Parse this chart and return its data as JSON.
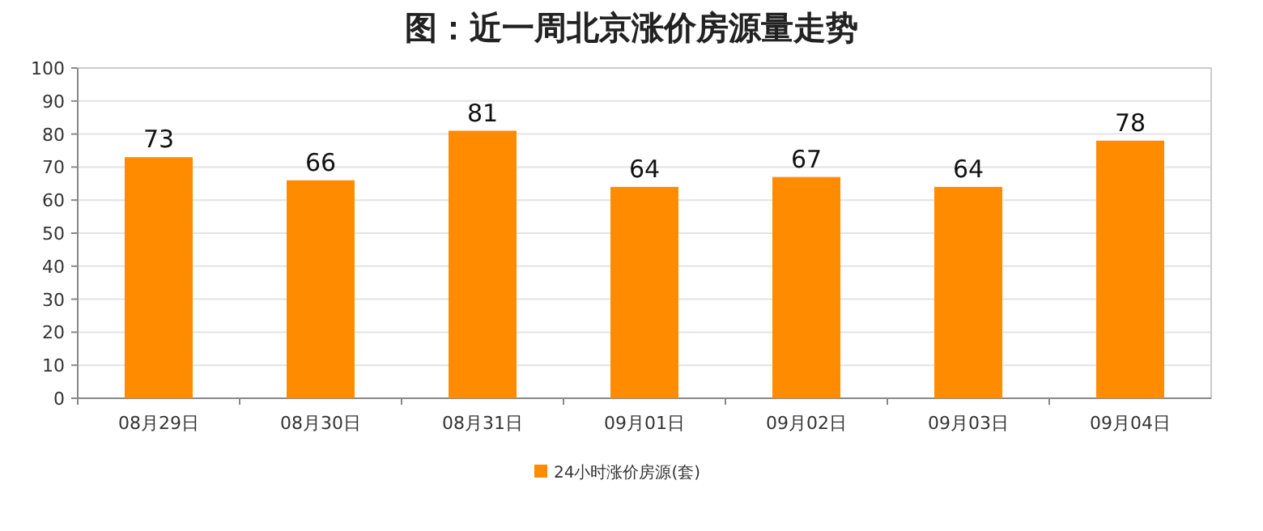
{
  "chart_data": {
    "type": "bar",
    "title": "图：近一周北京涨价房源量走势",
    "categories": [
      "08月29日",
      "08月30日",
      "08月31日",
      "09月01日",
      "09月02日",
      "09月03日",
      "09月04日"
    ],
    "series": [
      {
        "name": "24小时涨价房源(套)",
        "color": "#ff8c00",
        "values": [
          73,
          66,
          81,
          64,
          67,
          64,
          78
        ]
      }
    ],
    "ylim": [
      0,
      100
    ],
    "yticks": [
      0,
      10,
      20,
      30,
      40,
      50,
      60,
      70,
      80,
      90,
      100
    ],
    "grid": "y",
    "legend": "bottom",
    "data_labels": true
  }
}
